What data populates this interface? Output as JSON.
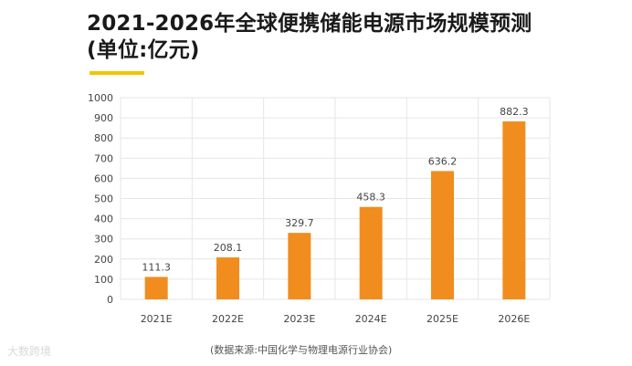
{
  "header": {
    "title_line1": "2021-2026年全球便携储能电源市场规模预测",
    "title_line2": "(单位:亿元)"
  },
  "footer": {
    "source": "(数据来源:中国化学与物理电源行业协会)",
    "watermark": "大数跨境"
  },
  "colors": {
    "bar": "#f08d1e",
    "accent": "#f5c400",
    "grid": "#e6e6e6"
  },
  "chart_data": {
    "type": "bar",
    "title": "2021-2026年全球便携储能电源市场规模预测",
    "xlabel": "",
    "ylabel": "亿元",
    "categories": [
      "2021E",
      "2022E",
      "2023E",
      "2024E",
      "2025E",
      "2026E"
    ],
    "values": [
      111.3,
      208.1,
      329.7,
      458.3,
      636.2,
      882.3
    ],
    "value_labels": [
      "111.3",
      "208.1",
      "329.7",
      "458.3",
      "636.2",
      "882.3"
    ],
    "yticks": [
      "0",
      "100",
      "200",
      "300",
      "400",
      "500",
      "600",
      "700",
      "800",
      "900",
      "1000"
    ],
    "ylim": [
      0,
      1000
    ],
    "grid": true,
    "legend": "none"
  }
}
